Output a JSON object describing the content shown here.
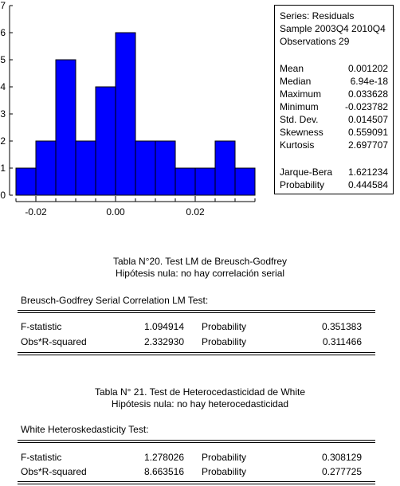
{
  "chart_data": {
    "type": "bar",
    "bin_edges": [
      -0.025,
      -0.02,
      -0.015,
      -0.01,
      -0.005,
      0.0,
      0.005,
      0.01,
      0.015,
      0.02,
      0.025,
      0.03,
      0.035
    ],
    "values": [
      1,
      2,
      5,
      2,
      4,
      6,
      2,
      2,
      1,
      1,
      2,
      1
    ],
    "xlim": [
      -0.025,
      0.035
    ],
    "ylim": [
      0,
      7
    ],
    "x_ticks": [
      -0.02,
      0.0,
      0.02
    ],
    "x_tick_labels": [
      "-0.02",
      "0.00",
      "0.02"
    ],
    "y_ticks": [
      0,
      1,
      2,
      3,
      4,
      5,
      6,
      7
    ],
    "y_tick_labels": [
      "0",
      "1",
      "2",
      "3",
      "4",
      "5",
      "6",
      "7"
    ],
    "bar_color": "#0000ff",
    "grid": false
  },
  "stats": {
    "series": "Series: Residuals",
    "sample": "Sample 2003Q4 2010Q4",
    "observations": "Observations 29",
    "rows": [
      {
        "label": "Mean",
        "value": "0.001202"
      },
      {
        "label": "Median",
        "value": "6.94e-18"
      },
      {
        "label": "Maximum",
        "value": "0.033628"
      },
      {
        "label": "Minimum",
        "value": "-0.023782"
      },
      {
        "label": "Std. Dev.",
        "value": "0.014507"
      },
      {
        "label": "Skewness",
        "value": "0.559091"
      },
      {
        "label": "Kurtosis",
        "value": "2.697707"
      }
    ],
    "jb_rows": [
      {
        "label": "Jarque-Bera",
        "value": "1.621234"
      },
      {
        "label": "Probability",
        "value": "0.444584"
      }
    ]
  },
  "table1": {
    "caption_line1": "Tabla N°20. Test LM de Breusch-Godfrey",
    "caption_line2": "Hipótesis nula: no hay correlación serial",
    "title": "Breusch-Godfrey Serial Correlation LM Test:",
    "rows": [
      {
        "name": "F-statistic",
        "value": "1.094914",
        "prob_label": "Probability",
        "prob": "0.351383"
      },
      {
        "name": "Obs*R-squared",
        "value": "2.332930",
        "prob_label": "Probability",
        "prob": "0.311466"
      }
    ]
  },
  "table2": {
    "caption_line1": "Tabla N° 21. Test de Heterocedasticidad de White",
    "caption_line2": "Hipótesis nula: no hay heterocedasticidad",
    "title": "White Heteroskedasticity Test:",
    "rows": [
      {
        "name": "F-statistic",
        "value": "1.278026",
        "prob_label": "Probability",
        "prob": "0.308129"
      },
      {
        "name": "Obs*R-squared",
        "value": "8.663516",
        "prob_label": "Probability",
        "prob": "0.277725"
      }
    ]
  }
}
